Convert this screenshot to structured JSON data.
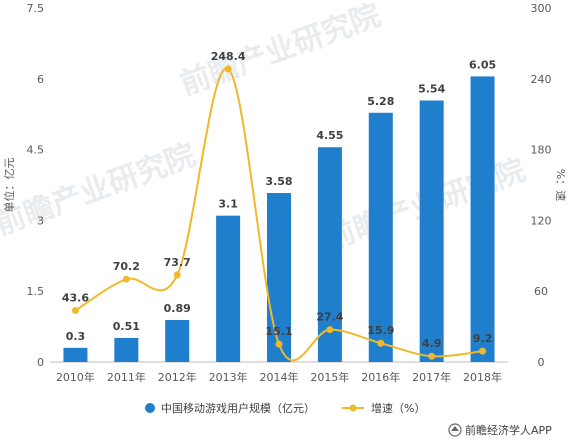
{
  "chart_data": {
    "type": "bar",
    "categories": [
      "2010年",
      "2011年",
      "2012年",
      "2013年",
      "2014年",
      "2015年",
      "2016年",
      "2017年",
      "2018年"
    ],
    "series": [
      {
        "name": "中国移动游戏用户规模（亿元）",
        "type": "bar",
        "axis": "left",
        "values": [
          0.3,
          0.51,
          0.89,
          3.1,
          3.58,
          4.55,
          5.28,
          5.54,
          6.05
        ],
        "labels": [
          "0.3",
          "0.51",
          "0.89",
          "3.1",
          "3.58",
          "4.55",
          "5.28",
          "5.54",
          "6.05"
        ]
      },
      {
        "name": "增速（%）",
        "type": "line",
        "axis": "right",
        "values": [
          43.6,
          70.2,
          73.7,
          248.4,
          15.1,
          27.4,
          15.9,
          4.9,
          9.2
        ],
        "labels": [
          "43.6",
          "70.2",
          "73.7",
          "248.4",
          "15.1",
          "27.4",
          "15.9",
          "4.9",
          "9.2"
        ]
      }
    ],
    "ylabel": "单位：亿元",
    "y2label": "%：速",
    "ylim": [
      0,
      7.5
    ],
    "y2lim": [
      0,
      300
    ],
    "yticks": [
      "0",
      "1.5",
      "3",
      "4.5",
      "6",
      "7.5"
    ],
    "y2ticks": [
      "0",
      "60",
      "120",
      "180",
      "240",
      "300"
    ],
    "legend_position": "bottom",
    "colors": {
      "bar": "#1f7fcc",
      "line": "#f0b92b"
    },
    "watermark": "前瞻产业研究院",
    "footer": "前瞻经济学人APP"
  }
}
